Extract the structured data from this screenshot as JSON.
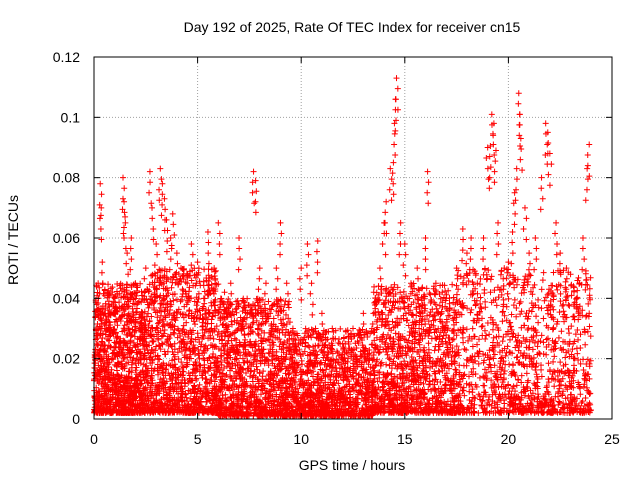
{
  "colors": {
    "series": "#ff0000",
    "grid": "#a0a0a0",
    "axis": "#000000"
  },
  "chart_data": {
    "type": "scatter",
    "title": "Day 192 of 2025, Rate Of TEC Index for receiver cn15",
    "xlabel": "GPS time / hours",
    "ylabel": "ROTI / TECUs",
    "xlim": [
      0,
      25
    ],
    "ylim": [
      0,
      0.12
    ],
    "xticks": [
      "0",
      "5",
      "10",
      "15",
      "20",
      "25"
    ],
    "yticks": [
      "0",
      "0.02",
      "0.04",
      "0.06",
      "0.08",
      "0.1",
      "0.12"
    ],
    "grid": true,
    "marker": "plus",
    "series": [
      {
        "points": [
          [
            0.1,
            0.006
          ],
          [
            0.2,
            0.045
          ],
          [
            0.3,
            0.078
          ],
          [
            0.35,
            0.07
          ],
          [
            0.4,
            0.052
          ],
          [
            0.5,
            0.035
          ],
          [
            0.6,
            0.02
          ],
          [
            0.8,
            0.013
          ],
          [
            1.0,
            0.04
          ],
          [
            1.2,
            0.025
          ],
          [
            1.4,
            0.08
          ],
          [
            1.45,
            0.072
          ],
          [
            1.5,
            0.067
          ],
          [
            1.6,
            0.055
          ],
          [
            1.8,
            0.06
          ],
          [
            2.0,
            0.045
          ],
          [
            2.2,
            0.03
          ],
          [
            2.5,
            0.05
          ],
          [
            2.7,
            0.082
          ],
          [
            2.8,
            0.07
          ],
          [
            3.0,
            0.058
          ],
          [
            3.2,
            0.083
          ],
          [
            3.3,
            0.078
          ],
          [
            3.4,
            0.073
          ],
          [
            3.5,
            0.066
          ],
          [
            3.7,
            0.06
          ],
          [
            3.8,
            0.068
          ],
          [
            4.0,
            0.055
          ],
          [
            4.2,
            0.05
          ],
          [
            4.5,
            0.045
          ],
          [
            4.7,
            0.058
          ],
          [
            5.0,
            0.052
          ],
          [
            5.3,
            0.04
          ],
          [
            5.5,
            0.062
          ],
          [
            5.8,
            0.05
          ],
          [
            6.0,
            0.065
          ],
          [
            6.3,
            0.042
          ],
          [
            6.6,
            0.045
          ],
          [
            7.0,
            0.06
          ],
          [
            7.4,
            0.035
          ],
          [
            7.7,
            0.082
          ],
          [
            7.8,
            0.079
          ],
          [
            8.0,
            0.05
          ],
          [
            8.3,
            0.045
          ],
          [
            8.5,
            0.035
          ],
          [
            8.8,
            0.05
          ],
          [
            9.0,
            0.065
          ],
          [
            9.3,
            0.045
          ],
          [
            9.6,
            0.03
          ],
          [
            10.0,
            0.05
          ],
          [
            10.3,
            0.058
          ],
          [
            10.5,
            0.045
          ],
          [
            10.8,
            0.059
          ],
          [
            11.0,
            0.035
          ],
          [
            11.5,
            0.03
          ],
          [
            12.0,
            0.025
          ],
          [
            12.5,
            0.03
          ],
          [
            13.0,
            0.035
          ],
          [
            13.5,
            0.042
          ],
          [
            13.8,
            0.05
          ],
          [
            14.0,
            0.065
          ],
          [
            14.1,
            0.072
          ],
          [
            14.3,
            0.083
          ],
          [
            14.45,
            0.085
          ],
          [
            14.5,
            0.098
          ],
          [
            14.55,
            0.106
          ],
          [
            14.6,
            0.113
          ],
          [
            14.8,
            0.065
          ],
          [
            15.0,
            0.058
          ],
          [
            15.3,
            0.045
          ],
          [
            15.6,
            0.05
          ],
          [
            16.0,
            0.06
          ],
          [
            16.1,
            0.082
          ],
          [
            16.5,
            0.045
          ],
          [
            17.0,
            0.04
          ],
          [
            17.5,
            0.05
          ],
          [
            17.8,
            0.063
          ],
          [
            18.0,
            0.055
          ],
          [
            18.2,
            0.06
          ],
          [
            18.5,
            0.045
          ],
          [
            18.8,
            0.06
          ],
          [
            19.0,
            0.09
          ],
          [
            19.1,
            0.087
          ],
          [
            19.2,
            0.101
          ],
          [
            19.3,
            0.098
          ],
          [
            19.4,
            0.089
          ],
          [
            19.5,
            0.065
          ],
          [
            19.8,
            0.05
          ],
          [
            20.0,
            0.052
          ],
          [
            20.2,
            0.062
          ],
          [
            20.3,
            0.075
          ],
          [
            20.4,
            0.083
          ],
          [
            20.5,
            0.108
          ],
          [
            20.55,
            0.101
          ],
          [
            20.6,
            0.093
          ],
          [
            20.8,
            0.07
          ],
          [
            21.0,
            0.055
          ],
          [
            21.3,
            0.06
          ],
          [
            21.6,
            0.08
          ],
          [
            21.8,
            0.098
          ],
          [
            21.9,
            0.095
          ],
          [
            22.0,
            0.088
          ],
          [
            22.3,
            0.065
          ],
          [
            22.5,
            0.055
          ],
          [
            22.8,
            0.05
          ],
          [
            23.0,
            0.048
          ],
          [
            23.3,
            0.04
          ],
          [
            23.6,
            0.06
          ],
          [
            23.8,
            0.083
          ],
          [
            23.9,
            0.091
          ]
        ]
      }
    ],
    "background_density": {
      "description_free_generation": true,
      "segments": [
        [
          0.0,
          2.5,
          0.002,
          0.045
        ],
        [
          2.5,
          6.0,
          0.002,
          0.05
        ],
        [
          6.0,
          9.5,
          0.001,
          0.04
        ],
        [
          9.5,
          13.5,
          0.001,
          0.03
        ],
        [
          13.5,
          17.5,
          0.002,
          0.045
        ],
        [
          17.5,
          24.0,
          0.002,
          0.05
        ]
      ],
      "count": 6500
    }
  }
}
